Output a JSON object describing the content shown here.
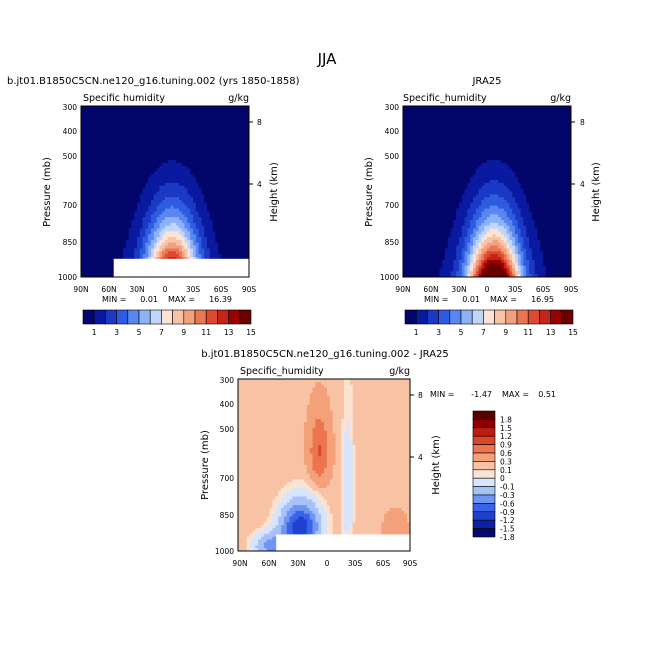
{
  "page": {
    "title": "JJA"
  },
  "colors": {
    "contour_abs": [
      "#02066b",
      "#0a1aa0",
      "#1a39c4",
      "#2e5ce0",
      "#5a86ef",
      "#8db2f6",
      "#bfd6fb",
      "#fce3d4",
      "#f8c4a8",
      "#f3a07e",
      "#ea7654",
      "#dc4a31",
      "#c52518",
      "#990000"
    ],
    "contour_diff": [
      "#040b6e",
      "#0c22a4",
      "#1e42d0",
      "#3a64e8",
      "#6f95f2",
      "#a6c2f8",
      "#d6e5fc",
      "#fbe3d2",
      "#f8c3a4",
      "#f4a079",
      "#ec744f",
      "#dc4528",
      "#bd1e10",
      "#8d0000"
    ]
  },
  "chart_data": [
    {
      "type": "heatmap",
      "name": "model",
      "title": "b.jt01.B1850C5CN.ne120_g16.tuning.002 (yrs 1850-1858)",
      "subtitle_left": "Specific humidity",
      "subtitle_right": "g/kg",
      "ylabel": "Pressure (mb)",
      "ylabel_right": "Height (km)",
      "x_ticks": [
        "90N",
        "60N",
        "30N",
        "0",
        "30S",
        "60S",
        "90S"
      ],
      "y_ticks": [
        "300",
        "400",
        "500",
        "700",
        "850",
        "1000"
      ],
      "y_right_ticks": [
        "8",
        "4"
      ],
      "stats": {
        "min_label": "MIN =",
        "min": "0.01",
        "max_label": "MAX =",
        "max": "16.39"
      },
      "levels": [
        1,
        2,
        3,
        4,
        5,
        6,
        7,
        8,
        9,
        10,
        11,
        12,
        13,
        14,
        15
      ],
      "levelbar_labels": [
        "1",
        "3",
        "5",
        "7",
        "9",
        "11",
        "13",
        "15"
      ],
      "peak": 16.39
    },
    {
      "type": "heatmap",
      "name": "obs",
      "title": "JRA25",
      "subtitle_left": "Specific_humidity",
      "subtitle_right": "g/kg",
      "ylabel": "Pressure (mb)",
      "ylabel_right": "Height (km)",
      "x_ticks": [
        "90N",
        "60N",
        "30N",
        "0",
        "30S",
        "60S",
        "90S"
      ],
      "y_ticks": [
        "300",
        "400",
        "500",
        "700",
        "850",
        "1000"
      ],
      "y_right_ticks": [
        "8",
        "4"
      ],
      "stats": {
        "min_label": "MIN =",
        "min": "0.01",
        "max_label": "MAX =",
        "max": "16.95"
      },
      "levels": [
        1,
        2,
        3,
        4,
        5,
        6,
        7,
        8,
        9,
        10,
        11,
        12,
        13,
        14,
        15
      ],
      "levelbar_labels": [
        "1",
        "3",
        "5",
        "7",
        "9",
        "11",
        "13",
        "15"
      ],
      "peak": 16.95
    },
    {
      "type": "heatmap",
      "name": "difference",
      "title": "b.jt01.B1850C5CN.ne120_g16.tuning.002 - JRA25",
      "subtitle_left": "Specific_humidity",
      "subtitle_right": "g/kg",
      "ylabel": "Pressure (mb)",
      "ylabel_right": "Height (km)",
      "x_ticks": [
        "90N",
        "60N",
        "30N",
        "0",
        "30S",
        "60S",
        "90S"
      ],
      "y_ticks": [
        "300",
        "400",
        "500",
        "700",
        "850",
        "1000"
      ],
      "y_right_ticks": [
        "8",
        "4"
      ],
      "stats": {
        "min_label": "MIN =",
        "min": "-1.47",
        "max_label": "MAX =",
        "max": "0.51"
      },
      "levels": [
        -1.8,
        -1.5,
        -1.2,
        -0.9,
        -0.6,
        -0.3,
        -0.1,
        0,
        0.1,
        0.3,
        0.6,
        0.9,
        1.2,
        1.5,
        1.8
      ],
      "levelbar_labels": [
        "1.8",
        "1.5",
        "1.2",
        "0.9",
        "0.6",
        "0.3",
        "0.1",
        "0",
        "-0.1",
        "-0.3",
        "-0.6",
        "-0.9",
        "-1.2",
        "-1.5",
        "-1.8"
      ]
    }
  ]
}
